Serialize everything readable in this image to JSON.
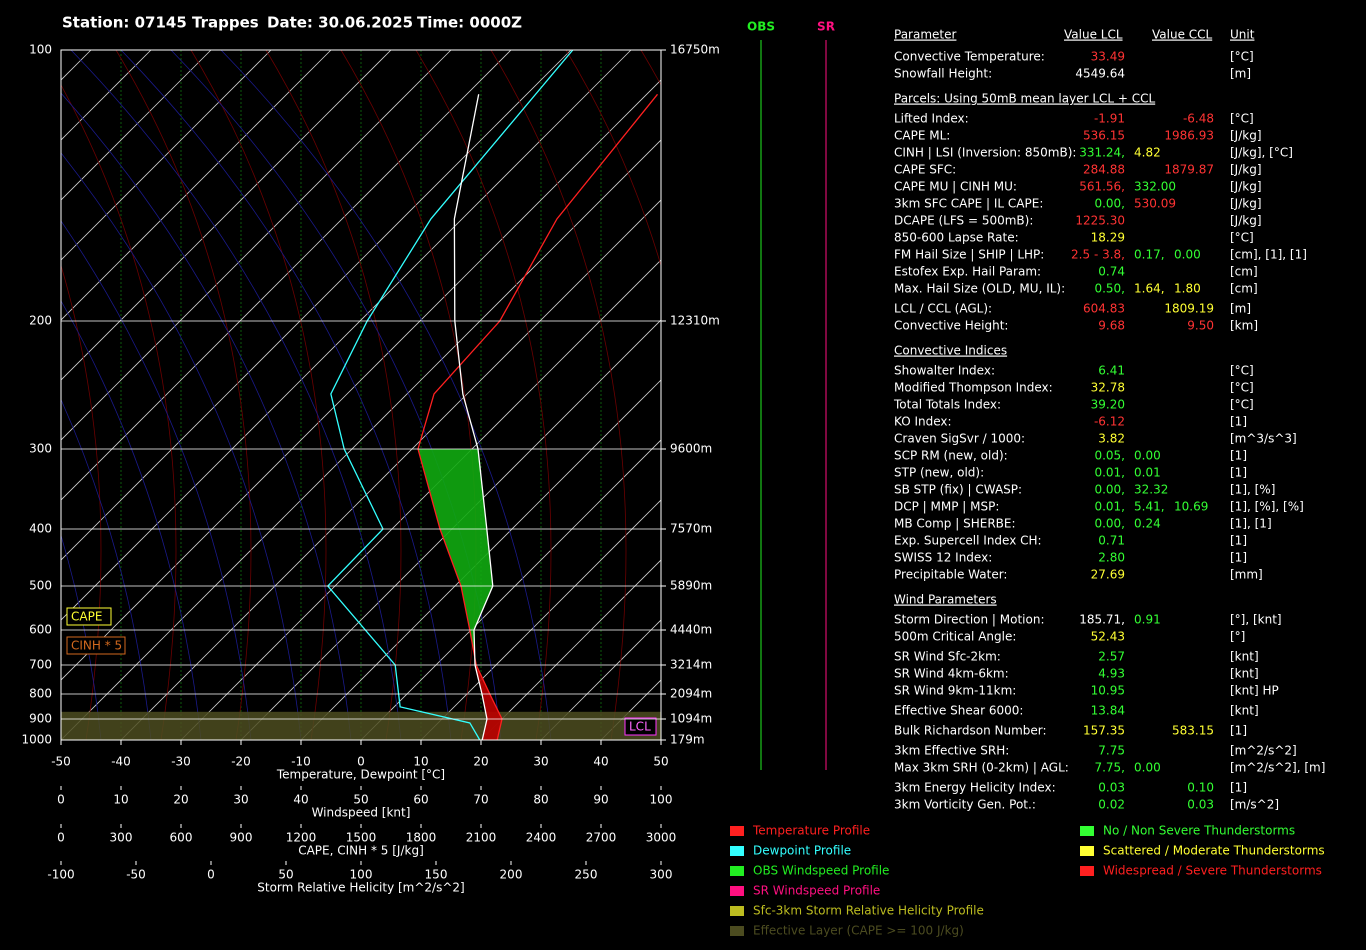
{
  "header": {
    "station": "Station: 07145 Trappes",
    "date": "Date: 30.06.2025",
    "time": "Time: 0000Z"
  },
  "chart_data": {
    "type": "skewt",
    "xlabel": "Temperature, Dewpoint  [°C]",
    "xlim": [
      -50,
      50
    ],
    "xticks": [
      -50,
      -40,
      -30,
      -20,
      -10,
      0,
      10,
      20,
      30,
      40,
      50
    ],
    "ylim": [
      100,
      1000
    ],
    "yticks": [
      100,
      200,
      300,
      400,
      500,
      600,
      700,
      800,
      900,
      1000
    ],
    "y2ticks": [
      {
        "value": 100,
        "label": "16750m"
      },
      {
        "value": 200,
        "label": "12310m"
      },
      {
        "value": 300,
        "label": "9600m"
      },
      {
        "value": 400,
        "label": "7570m"
      },
      {
        "value": 500,
        "label": "5890m"
      },
      {
        "value": 600,
        "label": "4440m"
      },
      {
        "value": 700,
        "label": "3214m"
      },
      {
        "value": 800,
        "label": "2094m"
      },
      {
        "value": 900,
        "label": "1094m"
      },
      {
        "value": 1000,
        "label": "179m"
      }
    ],
    "grid": true,
    "series": [
      {
        "name": "Temperature Profile",
        "color": "#ff2020",
        "pressure": [
          1000,
          900,
          800,
          700,
          600,
          500,
          400,
          300,
          252,
          200,
          154,
          112
        ],
        "values": [
          22.7,
          20,
          13.8,
          6.7,
          -0.2,
          -9,
          -22,
          -39,
          -45.5,
          -46.7,
          -54.2,
          -58.2
        ]
      },
      {
        "name": "Dewpoint Profile",
        "color": "#33ffff",
        "pressure": [
          1000,
          918,
          850,
          700,
          500,
          400,
          300,
          252,
          200,
          154,
          100
        ],
        "values": [
          19.8,
          15.3,
          1,
          -6.8,
          -31.2,
          -31.5,
          -51.3,
          -62.7,
          -68.8,
          -75.2,
          -79.7
        ]
      },
      {
        "color": "#ffffff",
        "pressure": [
          1000,
          900,
          800,
          700,
          600,
          500,
          400,
          300,
          252,
          200,
          154,
          112
        ],
        "values": [
          20.2,
          17.5,
          12.5,
          6.5,
          0.5,
          -3.7,
          -14.2,
          -29,
          -40.7,
          -54.2,
          -71.3,
          -88
        ]
      }
    ],
    "effective_layer": [
      1000,
      870
    ],
    "extra_axes": [
      {
        "label": "Windspeed  [knt]",
        "lim": [
          0,
          100
        ],
        "ticks": [
          0,
          10,
          20,
          30,
          40,
          50,
          60,
          70,
          80,
          90,
          100
        ]
      },
      {
        "label": "CAPE, CINH * 5  [J/kg]",
        "lim": [
          0,
          3000
        ],
        "ticks": [
          0,
          300,
          600,
          900,
          1200,
          1500,
          1800,
          2100,
          2400,
          2700,
          3000
        ]
      },
      {
        "label": "Storm Relative Helicity  [m^2/s^2]",
        "lim": [
          -100,
          300
        ],
        "ticks": [
          -100,
          -50,
          0,
          50,
          100,
          150,
          200,
          250,
          300
        ]
      }
    ],
    "annotations": {
      "cape": "CAPE",
      "cinh": "CINH * 5",
      "lcl": "LCL"
    },
    "wind_columns": {
      "obs": "OBS",
      "sr": "SR"
    },
    "legend_extra": [
      {
        "label": "OBS Windspeed Profile",
        "color": "#22ee22"
      },
      {
        "label": "SR Windspeed Profile",
        "color": "#ff1080"
      },
      {
        "label": "Sfc-3km Storm Relative Helicity Profile",
        "color": "#bcbc20"
      },
      {
        "label": "Effective Layer (CAPE >= 100 J/kg)",
        "color": "#4c4c20"
      }
    ],
    "threat_legend": [
      {
        "label": "No / Non Severe Thunderstorms",
        "color": "#33ff33"
      },
      {
        "label": "Scattered / Moderate Thunderstorms",
        "color": "#ffff33"
      },
      {
        "label": "Widespread / Severe Thunderstorms",
        "color": "#ff2020"
      }
    ]
  },
  "table": {
    "header": [
      "Parameter",
      "Value LCL",
      "Value CCL",
      "Unit"
    ],
    "rows": [
      {
        "label": "Convective Temperature:",
        "lcl": [
          {
            "text": "33.49",
            "color": "#ff3333"
          }
        ],
        "unit": "[°C]"
      },
      {
        "label": "Snowfall Height:",
        "lcl": [
          {
            "text": "4549.64",
            "color": "#ffffff"
          }
        ],
        "unit": "[m]"
      },
      {
        "heading": "Parcels: Using 50mB mean layer LCL + CCL"
      },
      {
        "label": "Lifted Index:",
        "lcl": [
          {
            "text": "-1.91",
            "color": "#ff3333"
          }
        ],
        "ccl": [
          {
            "text": "-6.48",
            "color": "#ff3333"
          }
        ],
        "unit": "[°C]"
      },
      {
        "label": "CAPE ML:",
        "lcl": [
          {
            "text": "536.15",
            "color": "#ff3333"
          }
        ],
        "ccl": [
          {
            "text": "1986.93",
            "color": "#ff3333"
          }
        ],
        "unit": "[J/kg]"
      },
      {
        "label": "CINH | LSI (Inversion: 850mB):",
        "lcl": [
          {
            "text": "331.24,",
            "color": "#33ff33"
          },
          {
            "text": "4.82",
            "color": "#ffff33"
          }
        ],
        "unit": "[J/kg], [°C]"
      },
      {
        "label": "CAPE SFC:",
        "lcl": [
          {
            "text": "284.88",
            "color": "#ff3333"
          }
        ],
        "ccl": [
          {
            "text": "1879.87",
            "color": "#ff3333"
          }
        ],
        "unit": "[J/kg]"
      },
      {
        "label": "CAPE MU | CINH MU:",
        "lcl": [
          {
            "text": "561.56,",
            "color": "#ff3333"
          },
          {
            "text": "332.00",
            "color": "#33ff33"
          }
        ],
        "unit": "[J/kg]"
      },
      {
        "label": "3km SFC CAPE | IL CAPE:",
        "lcl": [
          {
            "text": "0.00,",
            "color": "#33ff33"
          },
          {
            "text": "530.09",
            "color": "#ff3333"
          }
        ],
        "unit": "[J/kg]"
      },
      {
        "label": "DCAPE (LFS = 500mB):",
        "lcl": [
          {
            "text": "1225.30",
            "color": "#ff3333"
          }
        ],
        "unit": "[J/kg]"
      },
      {
        "label": "850-600 Lapse Rate:",
        "lcl": [
          {
            "text": "18.29",
            "color": "#ffff33"
          }
        ],
        "unit": "[°C]"
      },
      {
        "label": "FM Hail Size | SHIP | LHP:",
        "lcl": [
          {
            "text": "2.5 - 3.8,",
            "color": "#ff3333"
          },
          {
            "text": "0.17,",
            "color": "#33ff33"
          },
          {
            "text": "0.00",
            "color": "#33ff33"
          }
        ],
        "unit": "[cm], [1], [1]"
      },
      {
        "label": "Estofex Exp. Hail Param:",
        "lcl": [
          {
            "text": "0.74",
            "color": "#33ff33"
          }
        ],
        "unit": "[cm]"
      },
      {
        "label": "Max. Hail Size (OLD, MU, IL):",
        "lcl": [
          {
            "text": "0.50,",
            "color": "#33ff33"
          },
          {
            "text": "1.64,",
            "color": "#ffff33"
          },
          {
            "text": "1.80",
            "color": "#ffff33"
          }
        ],
        "unit": "[cm]"
      },
      {
        "label": "LCL / CCL (AGL):",
        "lcl": [
          {
            "text": "604.83",
            "color": "#ff3333"
          }
        ],
        "ccl": [
          {
            "text": "1809.19",
            "color": "#ffff33"
          }
        ],
        "unit": "[m]"
      },
      {
        "label": "Convective Height:",
        "lcl": [
          {
            "text": "9.68",
            "color": "#ff3333"
          }
        ],
        "ccl": [
          {
            "text": "9.50",
            "color": "#ff3333"
          }
        ],
        "unit": "[km]"
      },
      {
        "heading": "Convective Indices"
      },
      {
        "label": "Showalter Index:",
        "lcl": [
          {
            "text": "6.41",
            "color": "#33ff33"
          }
        ],
        "unit": "[°C]"
      },
      {
        "label": "Modified Thompson Index:",
        "lcl": [
          {
            "text": "32.78",
            "color": "#ffff33"
          }
        ],
        "unit": "[°C]"
      },
      {
        "label": "Total Totals Index:",
        "lcl": [
          {
            "text": "39.20",
            "color": "#33ff33"
          }
        ],
        "unit": "[°C]"
      },
      {
        "label": "KO Index:",
        "lcl": [
          {
            "text": "-6.12",
            "color": "#ff3333"
          }
        ],
        "unit": "[1]"
      },
      {
        "label": "Craven SigSvr / 1000:",
        "lcl": [
          {
            "text": "3.82",
            "color": "#ffff33"
          }
        ],
        "unit": "[m^3/s^3]"
      },
      {
        "label": "SCP RM (new, old):",
        "lcl": [
          {
            "text": "0.05,",
            "color": "#33ff33"
          },
          {
            "text": "0.00",
            "color": "#33ff33"
          }
        ],
        "unit": "[1]"
      },
      {
        "label": "STP (new, old):",
        "lcl": [
          {
            "text": "0.01,",
            "color": "#33ff33"
          },
          {
            "text": "0.01",
            "color": "#33ff33"
          }
        ],
        "unit": "[1]"
      },
      {
        "label": "SB STP (fix) | CWASP:",
        "lcl": [
          {
            "text": "0.00,",
            "color": "#33ff33"
          },
          {
            "text": "32.32",
            "color": "#33ff33"
          }
        ],
        "unit": "[1], [%]"
      },
      {
        "label": "DCP | MMP | MSP:",
        "lcl": [
          {
            "text": "0.01,",
            "color": "#33ff33"
          },
          {
            "text": "5.41,",
            "color": "#33ff33"
          },
          {
            "text": "10.69",
            "color": "#33ff33"
          }
        ],
        "unit": "[1], [%], [%]"
      },
      {
        "label": "MB Comp | SHERBE:",
        "lcl": [
          {
            "text": "0.00,",
            "color": "#33ff33"
          },
          {
            "text": "0.24",
            "color": "#33ff33"
          }
        ],
        "unit": "[1], [1]"
      },
      {
        "label": "Exp. Supercell Index CH:",
        "lcl": [
          {
            "text": "0.71",
            "color": "#33ff33"
          }
        ],
        "unit": "[1]"
      },
      {
        "label": "SWISS 12 Index:",
        "lcl": [
          {
            "text": "2.80",
            "color": "#33ff33"
          }
        ],
        "unit": "[1]"
      },
      {
        "label": "Precipitable Water:",
        "lcl": [
          {
            "text": "27.69",
            "color": "#ffff33"
          }
        ],
        "unit": "[mm]"
      },
      {
        "heading": "Wind Parameters"
      },
      {
        "label": "Storm Direction | Motion:",
        "lcl": [
          {
            "text": "185.71,",
            "color": "#ffffff"
          },
          {
            "text": "0.91",
            "color": "#33ff33"
          }
        ],
        "unit": "[°], [knt]"
      },
      {
        "label": "500m Critical Angle:",
        "lcl": [
          {
            "text": "52.43",
            "color": "#ffff33"
          }
        ],
        "unit": "[°]"
      },
      {
        "label": "SR Wind Sfc-2km:",
        "lcl": [
          {
            "text": "2.57",
            "color": "#33ff33"
          }
        ],
        "unit": "[knt]"
      },
      {
        "label": "SR Wind 4km-6km:",
        "lcl": [
          {
            "text": "4.93",
            "color": "#33ff33"
          }
        ],
        "unit": "[knt]"
      },
      {
        "label": "SR Wind 9km-11km:",
        "lcl": [
          {
            "text": "10.95",
            "color": "#33ff33"
          }
        ],
        "unit": "[knt] HP"
      },
      {
        "label": "Effective Shear 6000:",
        "lcl": [
          {
            "text": "13.84",
            "color": "#33ff33"
          }
        ],
        "unit": "[knt]"
      },
      {
        "label": "Bulk Richardson Number:",
        "lcl": [
          {
            "text": "157.35",
            "color": "#ffff33"
          }
        ],
        "ccl": [
          {
            "text": "583.15",
            "color": "#ffff33"
          }
        ],
        "unit": "[1]"
      },
      {
        "label": "3km Effective SRH:",
        "lcl": [
          {
            "text": "7.75",
            "color": "#33ff33"
          }
        ],
        "unit": "[m^2/s^2]"
      },
      {
        "label": "Max 3km SRH (0-2km) | AGL:",
        "lcl": [
          {
            "text": "7.75,",
            "color": "#33ff33"
          },
          {
            "text": "0.00",
            "color": "#33ff33"
          }
        ],
        "unit": "[m^2/s^2], [m]"
      },
      {
        "label": "3km Energy Helicity Index:",
        "lcl": [
          {
            "text": "0.03",
            "color": "#33ff33"
          }
        ],
        "ccl": [
          {
            "text": "0.10",
            "color": "#33ff33"
          }
        ],
        "unit": "[1]"
      },
      {
        "label": "3km Vorticity Gen. Pot.:",
        "lcl": [
          {
            "text": "0.02",
            "color": "#33ff33"
          }
        ],
        "ccl": [
          {
            "text": "0.03",
            "color": "#33ff33"
          }
        ],
        "unit": "[m/s^2]"
      }
    ]
  }
}
